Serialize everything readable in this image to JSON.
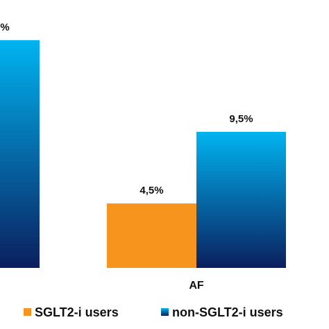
{
  "chart_data": {
    "type": "bar",
    "categories": [
      null,
      "AF"
    ],
    "series": [
      {
        "name": "SGLT2-i users",
        "color": "#f7941d",
        "values": [
          null,
          4.5
        ],
        "value_labels": [
          null,
          "4,5%"
        ]
      },
      {
        "name": "non-SGLT2-i users",
        "color": "#00b4f0",
        "values": [
          15.9,
          9.5
        ],
        "value_labels": [
          "%",
          "9,5%"
        ]
      }
    ],
    "ylim": [
      0,
      18.7
    ]
  }
}
